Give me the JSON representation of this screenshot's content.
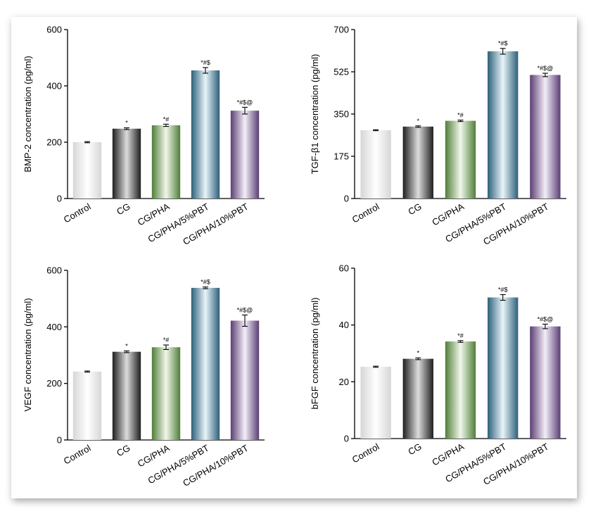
{
  "chart_data": [
    {
      "type": "bar",
      "title": "",
      "ylabel": "BMP-2 concentration (pg/ml)",
      "xlabel": "",
      "ylim": [
        0,
        600
      ],
      "yticks": [
        "0",
        "200",
        "400",
        "600"
      ],
      "yticks_values": [
        0,
        200,
        400,
        600
      ],
      "categories": [
        "Control",
        "CG",
        "CG/PHA",
        "CG/PHA/5%PBT",
        "CG/PHA/10%PBT"
      ],
      "values": [
        200,
        248,
        260,
        455,
        312
      ],
      "errors": [
        2,
        3,
        4,
        10,
        12
      ],
      "significance": [
        "",
        "*",
        "*#",
        "*#$",
        "*#$@"
      ]
    },
    {
      "type": "bar",
      "title": "",
      "ylabel": "TGF-β1 concentration (pg/ml)",
      "xlabel": "",
      "ylim": [
        0,
        700
      ],
      "yticks": [
        "0",
        "175",
        "350",
        "525",
        "700"
      ],
      "yticks_values": [
        0,
        175,
        350,
        525,
        700
      ],
      "categories": [
        "Control",
        "CG",
        "CG/PHA",
        "CG/PHA/5%PBT",
        "CG/PHA/10%PBT"
      ],
      "values": [
        283,
        298,
        322,
        610,
        512
      ],
      "errors": [
        2,
        3,
        3,
        12,
        7
      ],
      "significance": [
        "",
        "*",
        "*#",
        "*#$",
        "*#$@"
      ]
    },
    {
      "type": "bar",
      "title": "",
      "ylabel": "VEGF concentration (pg/ml)",
      "xlabel": "",
      "ylim": [
        0,
        600
      ],
      "yticks": [
        "0",
        "200",
        "400",
        "600"
      ],
      "yticks_values": [
        0,
        200,
        400,
        600
      ],
      "categories": [
        "Control",
        "CG",
        "CG/PHA",
        "CG/PHA/5%PBT",
        "CG/PHA/10%PBT"
      ],
      "values": [
        242,
        312,
        328,
        538,
        422
      ],
      "errors": [
        2,
        3,
        8,
        3,
        20
      ],
      "significance": [
        "",
        "*",
        "*#",
        "*#$",
        "*#$@"
      ]
    },
    {
      "type": "bar",
      "title": "",
      "ylabel": "bFGF concentration (pg/ml)",
      "xlabel": "",
      "ylim": [
        0,
        60
      ],
      "yticks": [
        "0",
        "20",
        "40",
        "60"
      ],
      "yticks_values": [
        0,
        20,
        40,
        60
      ],
      "categories": [
        "Control",
        "CG",
        "CG/PHA",
        "CG/PHA/5%PBT",
        "CG/PHA/10%PBT"
      ],
      "values": [
        25.3,
        28.1,
        34.2,
        49.7,
        39.5
      ],
      "errors": [
        0.2,
        0.3,
        0.3,
        1.0,
        0.8
      ],
      "significance": [
        "",
        "*",
        "*#",
        "*#$",
        "*#$@"
      ]
    }
  ],
  "bar_colors": {
    "edge": [
      "#d6d6d6",
      "#1e1e1e",
      "#4f7e38",
      "#2c6079",
      "#5b3e74"
    ],
    "center": [
      "#ffffff",
      "#dcdcdc",
      "#f2f7ea",
      "#e9f4f9",
      "#f3eef8"
    ]
  }
}
